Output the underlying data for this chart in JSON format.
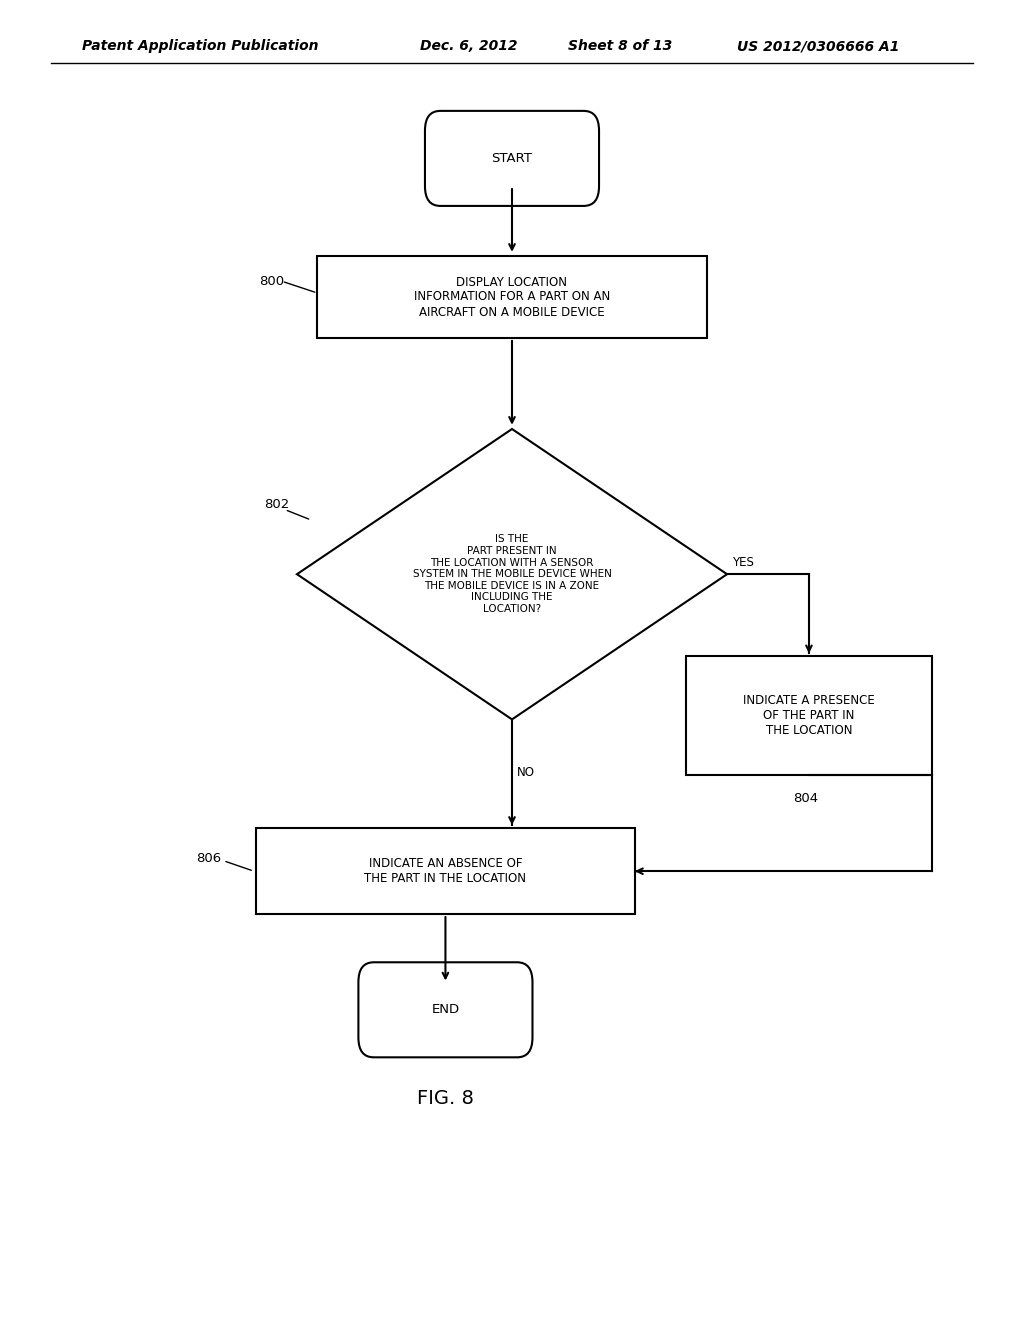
{
  "bg_color": "#ffffff",
  "header_text": "Patent Application Publication",
  "header_date": "Dec. 6, 2012",
  "header_sheet": "Sheet 8 of 13",
  "header_patent": "US 2012/0306666 A1",
  "fig_label": "FIG. 8",
  "text_fontsize": 8.5,
  "header_fontsize": 10,
  "line_color": "#000000",
  "fill_color": "#ffffff"
}
